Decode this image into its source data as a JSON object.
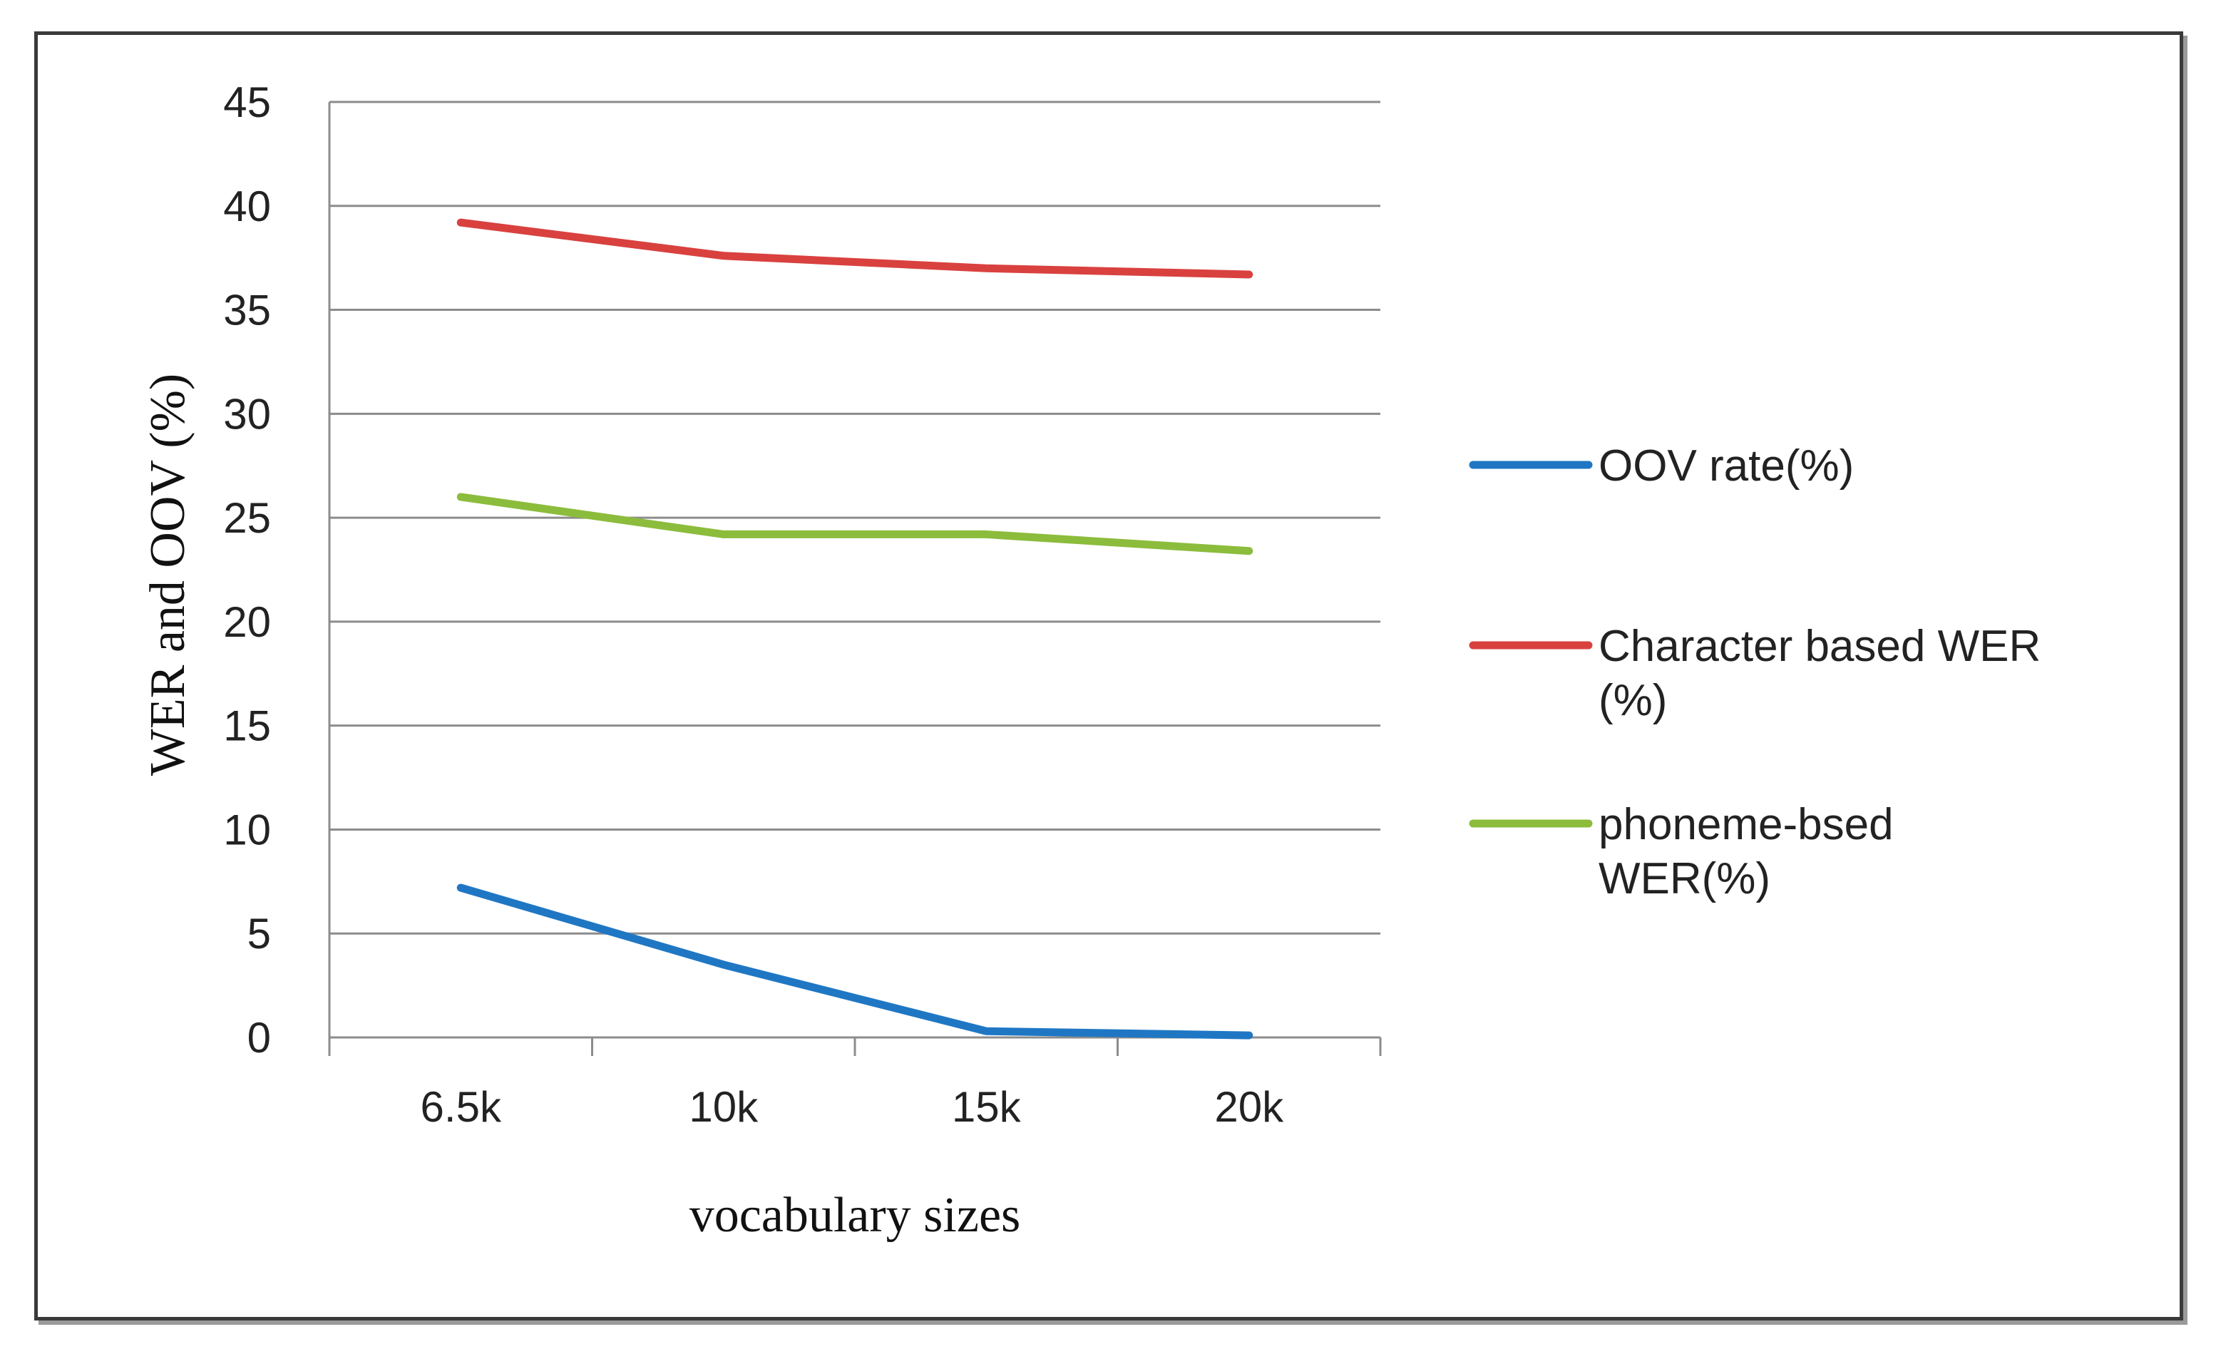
{
  "chart_data": {
    "type": "line",
    "title": "",
    "xlabel": "vocabulary sizes",
    "ylabel": "WER and OOV (%)",
    "categories": [
      "6.5k",
      "10k",
      "15k",
      "20k"
    ],
    "ylim": [
      0,
      45
    ],
    "yticks": [
      0,
      5,
      10,
      15,
      20,
      25,
      30,
      35,
      40,
      45
    ],
    "grid": true,
    "legend_position": "right",
    "series": [
      {
        "name": "OOV rate(%)",
        "legend_lines": [
          "OOV rate(%)"
        ],
        "color": "#1f77c4",
        "values": [
          7.2,
          3.5,
          0.3,
          0.1
        ]
      },
      {
        "name": "Character based WER (%)",
        "legend_lines": [
          "Character based WER",
          "(%)"
        ],
        "color": "#d9413f",
        "values": [
          39.2,
          37.6,
          37.0,
          36.7
        ]
      },
      {
        "name": "phoneme-bsed WER(%)",
        "legend_lines": [
          "phoneme-bsed",
          "WER(%)"
        ],
        "color": "#8cbc3c",
        "values": [
          26.0,
          24.2,
          24.2,
          23.4
        ]
      }
    ]
  }
}
